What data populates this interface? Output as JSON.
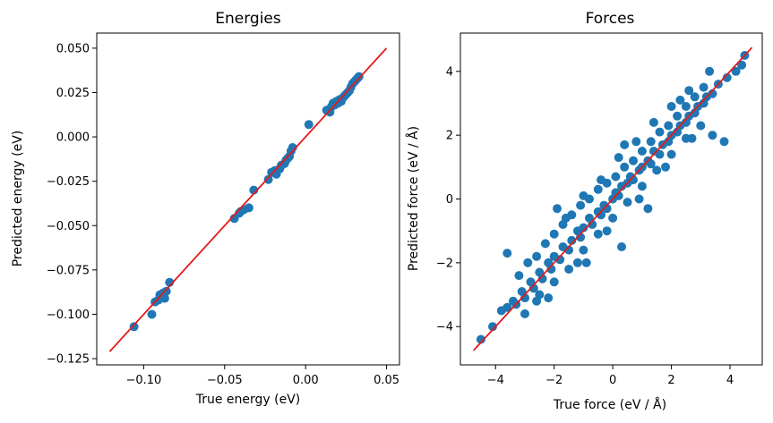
{
  "chart_data": [
    {
      "type": "scatter",
      "title": "Energies",
      "xlabel": "True energy (eV)",
      "ylabel": "Predicted energy (eV)",
      "xlim": [
        -0.129,
        0.058
      ],
      "ylim": [
        -0.1285,
        0.0585
      ],
      "xticks": [
        -0.1,
        -0.05,
        0.0,
        0.05
      ],
      "xtick_labels": [
        "−0.10",
        "−0.05",
        "0.00",
        "0.05"
      ],
      "yticks": [
        -0.125,
        -0.1,
        -0.075,
        -0.05,
        -0.025,
        0.0,
        0.025,
        0.05
      ],
      "ytick_labels": [
        "−0.125",
        "−0.100",
        "−0.075",
        "−0.050",
        "−0.025",
        "0.000",
        "0.025",
        "0.050"
      ],
      "grid": false,
      "point_color": "#1f77b4",
      "line_color": "#e41a1c",
      "series": [
        {
          "x": [
            -0.106,
            -0.095,
            -0.093,
            -0.091,
            -0.09,
            -0.089,
            -0.088,
            -0.087,
            -0.086,
            -0.084,
            -0.044,
            -0.041,
            -0.04,
            -0.038,
            -0.035,
            -0.032,
            -0.023,
            -0.021,
            -0.019,
            -0.018,
            -0.016,
            -0.015,
            -0.013,
            -0.012,
            -0.011,
            -0.01,
            -0.009,
            -0.008,
            0.002,
            0.013,
            0.015,
            0.016,
            0.017,
            0.018,
            0.019,
            0.02,
            0.021,
            0.022,
            0.023,
            0.024,
            0.025,
            0.026,
            0.027,
            0.028,
            0.029,
            0.03,
            0.031,
            0.032,
            0.033
          ],
          "y": [
            -0.107,
            -0.1,
            -0.093,
            -0.092,
            -0.089,
            -0.09,
            -0.088,
            -0.091,
            -0.087,
            -0.082,
            -0.046,
            -0.043,
            -0.042,
            -0.041,
            -0.04,
            -0.03,
            -0.024,
            -0.02,
            -0.019,
            -0.021,
            -0.018,
            -0.016,
            -0.015,
            -0.013,
            -0.012,
            -0.011,
            -0.008,
            -0.006,
            0.007,
            0.015,
            0.014,
            0.017,
            0.019,
            0.018,
            0.02,
            0.019,
            0.021,
            0.02,
            0.022,
            0.023,
            0.024,
            0.025,
            0.026,
            0.028,
            0.03,
            0.031,
            0.032,
            0.033,
            0.034
          ]
        },
        {
          "type": "line",
          "x": [
            -0.121,
            0.05
          ],
          "y": [
            -0.121,
            0.05
          ]
        }
      ]
    },
    {
      "type": "scatter",
      "title": "Forces",
      "xlabel": "True force (eV / Å)",
      "ylabel": "Predicted force (eV / Å)",
      "xlim": [
        -5.2,
        5.1
      ],
      "ylim": [
        -5.2,
        5.2
      ],
      "xticks": [
        -4,
        -2,
        0,
        2,
        4
      ],
      "xtick_labels": [
        "−4",
        "−2",
        "0",
        "2",
        "4"
      ],
      "yticks": [
        -4,
        -2,
        0,
        2,
        4
      ],
      "ytick_labels": [
        "−4",
        "−2",
        "0",
        "2",
        "4"
      ],
      "grid": false,
      "point_color": "#1f77b4",
      "line_color": "#e41a1c",
      "series": [
        {
          "x": [
            -4.5,
            -4.1,
            -3.8,
            -3.6,
            -3.4,
            -3.3,
            -3.1,
            -3.0,
            -2.8,
            -2.7,
            -2.5,
            -2.4,
            -2.2,
            -2.1,
            -2.0,
            -1.8,
            -1.7,
            -1.5,
            -1.4,
            -1.2,
            -1.1,
            -1.0,
            -0.8,
            -0.7,
            -0.5,
            -0.4,
            -0.3,
            -0.2,
            0.0,
            0.1,
            0.2,
            0.3,
            0.5,
            0.6,
            0.7,
            0.9,
            1.0,
            1.2,
            1.3,
            1.4,
            1.6,
            1.7,
            1.9,
            2.0,
            2.2,
            2.3,
            2.5,
            2.6,
            2.8,
            2.9,
            3.1,
            3.2,
            3.4,
            3.6,
            3.9,
            4.2,
            4.4,
            4.5,
            -3.2,
            -2.9,
            -2.6,
            -2.3,
            -2.0,
            -1.7,
            -1.4,
            -1.1,
            -0.8,
            -0.5,
            -0.2,
            0.1,
            0.4,
            0.7,
            1.0,
            1.3,
            1.6,
            1.9,
            2.2,
            2.5,
            2.8,
            3.1,
            -3.0,
            -2.5,
            -2.0,
            -1.5,
            -1.0,
            -0.5,
            0.0,
            0.5,
            1.0,
            1.5,
            2.0,
            2.5,
            3.0,
            -1.6,
            -1.0,
            -0.4,
            0.2,
            0.8,
            1.4,
            2.0,
            2.6,
            3.3,
            -2.2,
            -1.2,
            -0.2,
            0.9,
            1.8,
            2.7,
            -3.6,
            -1.9,
            0.4,
            2.3,
            3.4,
            3.8,
            0.3,
            1.2,
            -0.9,
            -2.6
          ],
          "y": [
            -4.4,
            -4.0,
            -3.5,
            -3.4,
            -3.2,
            -3.3,
            -2.9,
            -3.1,
            -2.6,
            -2.8,
            -2.3,
            -2.5,
            -2.0,
            -2.2,
            -1.8,
            -1.9,
            -1.5,
            -1.6,
            -1.3,
            -1.0,
            -1.2,
            -0.9,
            -0.6,
            -0.8,
            -0.4,
            -0.5,
            -0.2,
            -0.3,
            0.0,
            0.2,
            0.1,
            0.4,
            0.5,
            0.7,
            0.6,
            0.9,
            1.0,
            1.2,
            1.1,
            1.5,
            1.4,
            1.7,
            1.8,
            2.0,
            2.1,
            2.3,
            2.4,
            2.6,
            2.7,
            2.9,
            3.0,
            3.2,
            3.3,
            3.6,
            3.8,
            4.0,
            4.2,
            4.5,
            -2.4,
            -2.0,
            -1.8,
            -1.4,
            -1.1,
            -0.8,
            -0.5,
            -0.2,
            0.0,
            0.3,
            0.5,
            0.7,
            1.0,
            1.2,
            1.5,
            1.8,
            2.1,
            2.3,
            2.6,
            2.9,
            3.2,
            3.5,
            -3.6,
            -3.0,
            -2.6,
            -2.2,
            -1.6,
            -1.1,
            -0.6,
            -0.1,
            0.4,
            0.9,
            1.4,
            1.9,
            2.3,
            -0.6,
            0.1,
            0.6,
            1.3,
            1.8,
            2.4,
            2.9,
            3.4,
            4.0,
            -3.1,
            -2.0,
            -1.0,
            0.0,
            1.0,
            1.9,
            -1.7,
            -0.3,
            1.7,
            3.1,
            2.0,
            1.8,
            -1.5,
            -0.3,
            -2.0,
            -3.2
          ]
        },
        {
          "type": "line",
          "x": [
            -4.75,
            4.75
          ],
          "y": [
            -4.75,
            4.75
          ]
        }
      ]
    }
  ]
}
